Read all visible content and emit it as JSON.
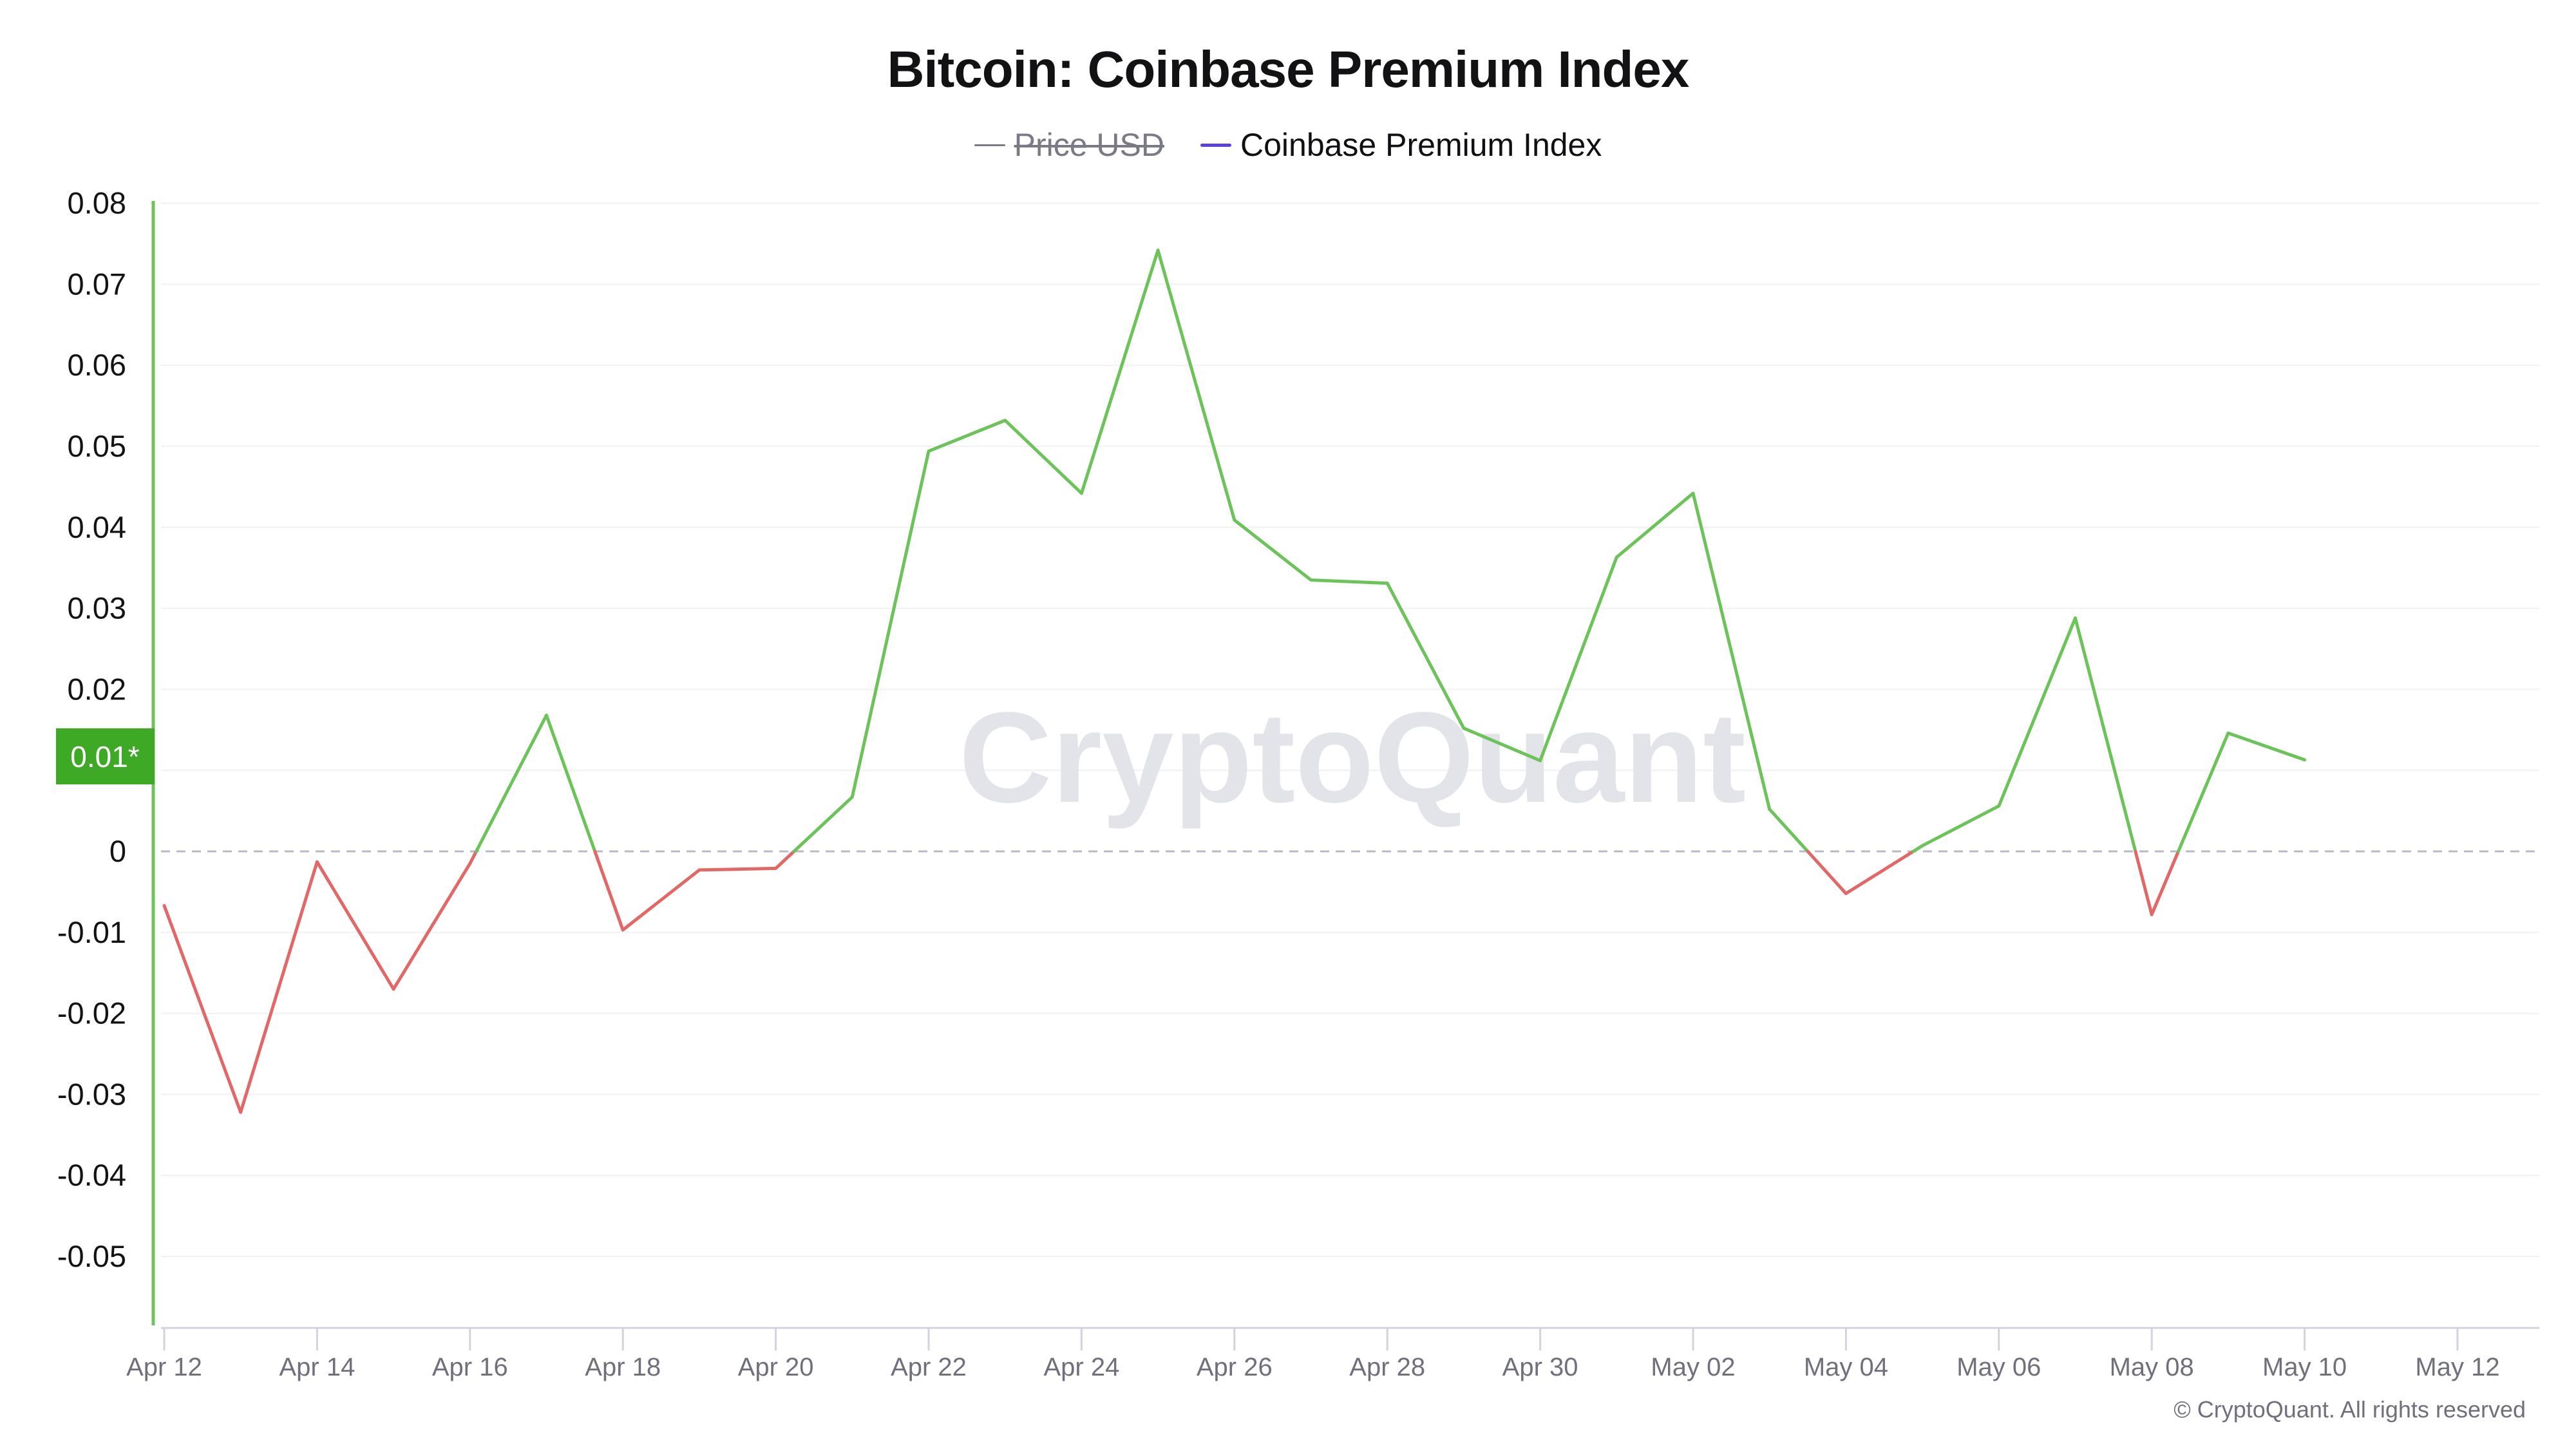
{
  "header": {
    "title": "Bitcoin: Coinbase Premium Index"
  },
  "legend": [
    {
      "label": "Price USD",
      "color": "#7a7a85",
      "hidden": true
    },
    {
      "label": "Coinbase Premium Index",
      "color": "#5a3fe6",
      "hidden": false
    }
  ],
  "watermark": "CryptoQuant",
  "current_value_badge": {
    "label": "0.01*",
    "color": "#3ea924"
  },
  "footer": {
    "copyright": "© CryptoQuant. All rights reserved"
  },
  "colors": {
    "positive": "#6cc35a",
    "negative": "#e26868",
    "axis_left": "#6cc35a",
    "grid": "#f1f1f3",
    "zero_line": "#b9b9c9",
    "x_axis": "#d3d3dc"
  },
  "chart_data": {
    "type": "line",
    "title": "Bitcoin: Coinbase Premium Index",
    "xlabel": "",
    "ylabel": "",
    "ylim": [
      -0.058,
      0.081
    ],
    "yticks": [
      0.08,
      0.07,
      0.06,
      0.05,
      0.04,
      0.03,
      0.02,
      0.01,
      0,
      -0.01,
      -0.02,
      -0.03,
      -0.04,
      -0.05
    ],
    "ytick_labels": [
      "0.08",
      "0.07",
      "0.06",
      "0.05",
      "0.04",
      "0.03",
      "0.02",
      "0.01",
      "0",
      "-0.01",
      "-0.02",
      "-0.03",
      "-0.04",
      "-0.05"
    ],
    "xticks": [
      "Apr 12",
      "Apr 14",
      "Apr 16",
      "Apr 18",
      "Apr 20",
      "Apr 22",
      "Apr 24",
      "Apr 26",
      "Apr 28",
      "Apr 30",
      "May 02",
      "May 04",
      "May 06",
      "May 08",
      "May 10",
      "May 12"
    ],
    "grid": true,
    "legend_position": "top-center",
    "x": [
      "Apr 12",
      "Apr 13",
      "Apr 14",
      "Apr 15",
      "Apr 16",
      "Apr 17",
      "Apr 18",
      "Apr 19",
      "Apr 20",
      "Apr 21",
      "Apr 22",
      "Apr 23",
      "Apr 24",
      "Apr 25",
      "Apr 26",
      "Apr 27",
      "Apr 28",
      "Apr 29",
      "Apr 30",
      "May 01",
      "May 02",
      "May 03",
      "May 04",
      "May 05",
      "May 06",
      "May 07",
      "May 08",
      "May 09",
      "May 10"
    ],
    "series": [
      {
        "name": "Coinbase Premium Index",
        "values": [
          -0.0067,
          -0.0322,
          -0.0013,
          -0.017,
          -0.0015,
          0.0168,
          -0.0097,
          -0.0023,
          -0.0021,
          0.0067,
          0.0494,
          0.0532,
          0.0442,
          0.0742,
          0.0409,
          0.0335,
          0.0331,
          0.0152,
          0.0112,
          0.0363,
          0.0442,
          0.0052,
          -0.0052,
          0.0007,
          0.0056,
          0.0288,
          -0.0078,
          0.0146,
          0.0113
        ]
      },
      {
        "name": "Price USD",
        "values": [],
        "hidden": true
      }
    ],
    "annotations": [
      {
        "type": "current-value-badge",
        "value": "0.01*"
      }
    ]
  }
}
